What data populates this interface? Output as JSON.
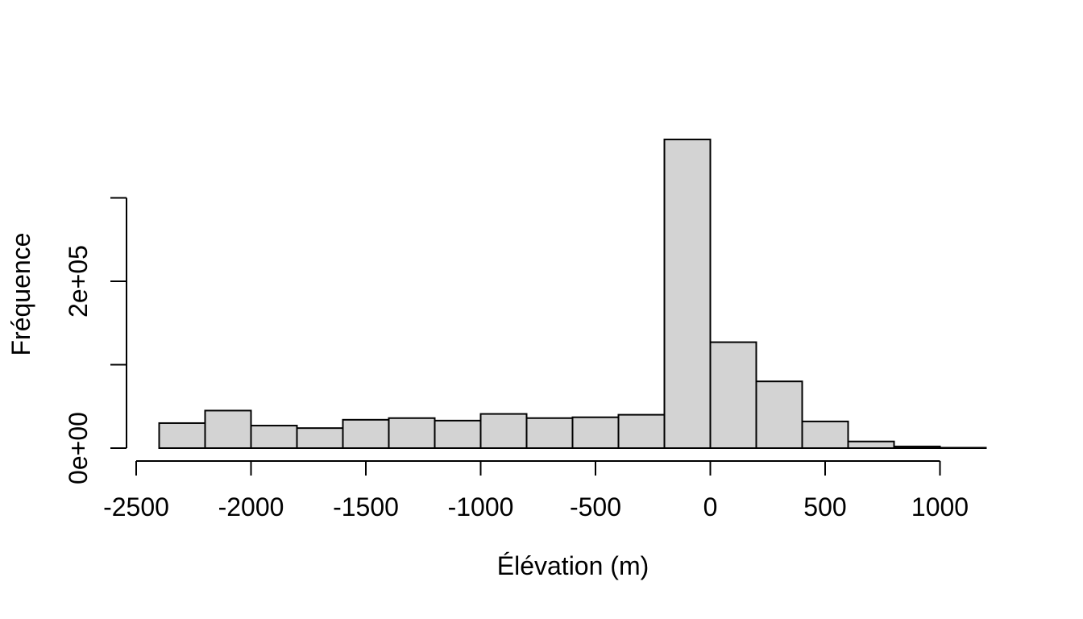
{
  "figure": {
    "background": "#ffffff",
    "text_color": "#000000"
  },
  "chart_data": {
    "type": "bar",
    "subtype": "histogram",
    "title": "",
    "xlabel": "Élévation (m)",
    "ylabel": "Fréquence",
    "bar_fill": "#d3d3d3",
    "bar_border": "#000000",
    "bin_width": 200,
    "bin_starts": [
      -2400,
      -2200,
      -2000,
      -1800,
      -1600,
      -1400,
      -1200,
      -1000,
      -800,
      -600,
      -400,
      -200,
      0,
      200,
      400,
      600,
      800,
      1000
    ],
    "counts": [
      30000,
      45000,
      27000,
      24000,
      34000,
      36000,
      33000,
      41000,
      36000,
      37000,
      40000,
      370000,
      127000,
      80000,
      32000,
      8000,
      2000,
      500
    ],
    "x_axis": {
      "ticks": [
        -2500,
        -2000,
        -1500,
        -1000,
        -500,
        0,
        500,
        1000
      ],
      "labels": [
        "-2500",
        "-2000",
        "-1500",
        "-1000",
        "-500",
        "0",
        "500",
        "1000"
      ]
    },
    "y_axis": {
      "ticks": [
        0,
        100000,
        200000,
        300000
      ],
      "labels": [
        "0e+00",
        "",
        "2e+05",
        ""
      ]
    },
    "xlim": [
      -2500,
      1200
    ],
    "ylim": [
      0,
      370000
    ],
    "grid": false,
    "legend": "none"
  }
}
